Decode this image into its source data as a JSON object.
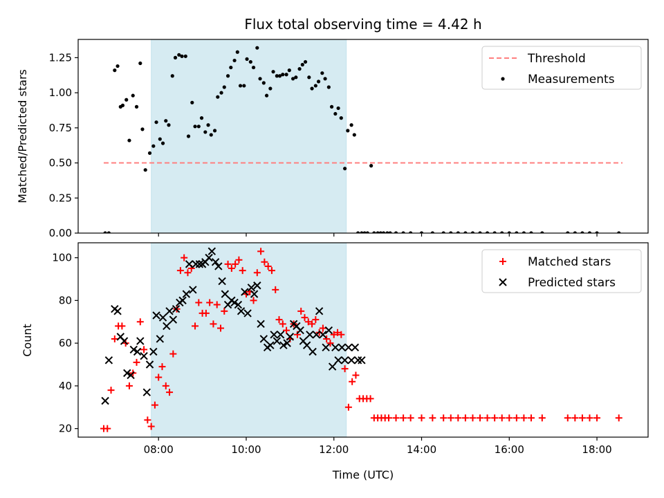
{
  "chart_data": [
    {
      "type": "scatter",
      "title": "Flux total observing time = 4.42 h",
      "xlabel": "",
      "ylabel": "Matched/Predicted stars",
      "xlim": [
        "06:10",
        "19:10"
      ],
      "ylim": [
        0,
        1.38
      ],
      "yticks": [
        0.0,
        0.25,
        0.5,
        0.75,
        1.0,
        1.25
      ],
      "ytick_labels": [
        "0.00",
        "0.25",
        "0.50",
        "0.75",
        "1.00",
        "1.25"
      ],
      "shaded_span": {
        "x": [
          "07:50",
          "12:17"
        ],
        "color": "#add8e6"
      },
      "threshold": {
        "name": "Threshold",
        "y": 0.5,
        "x": [
          "06:45",
          "18:35"
        ],
        "color": "#ff7f7f"
      },
      "legend": {
        "position": "top-right",
        "entries": [
          "Threshold",
          "Measurements"
        ]
      },
      "series": [
        {
          "name": "Measurements",
          "color": "#000000",
          "x": [
            "06:47",
            "06:52",
            "07:00",
            "07:04",
            "07:08",
            "07:11",
            "07:16",
            "07:20",
            "07:25",
            "07:30",
            "07:35",
            "07:38",
            "07:42",
            "07:48",
            "07:53",
            "07:57",
            "08:02",
            "08:06",
            "08:10",
            "08:14",
            "08:19",
            "08:23",
            "08:28",
            "08:32",
            "08:37",
            "08:41",
            "08:46",
            "08:50",
            "08:55",
            "08:59",
            "09:04",
            "09:08",
            "09:12",
            "09:17",
            "09:21",
            "09:26",
            "09:30",
            "09:35",
            "09:39",
            "09:44",
            "09:48",
            "09:52",
            "09:57",
            "10:01",
            "10:06",
            "10:10",
            "10:15",
            "10:19",
            "10:24",
            "10:28",
            "10:33",
            "10:37",
            "10:42",
            "10:46",
            "10:50",
            "10:55",
            "10:59",
            "11:04",
            "11:08",
            "11:13",
            "11:17",
            "11:21",
            "11:26",
            "11:30",
            "11:35",
            "11:39",
            "11:44",
            "11:48",
            "11:53",
            "11:57",
            "12:02",
            "12:06",
            "12:10",
            "12:15",
            "12:19",
            "12:24",
            "12:28",
            "12:33",
            "12:38",
            "12:42",
            "12:46",
            "12:51",
            "12:55",
            "13:00",
            "13:04",
            "13:08",
            "13:13",
            "13:17",
            "13:25",
            "13:35",
            "13:45",
            "14:00",
            "14:15",
            "14:30",
            "14:40",
            "14:50",
            "15:00",
            "15:10",
            "15:20",
            "15:30",
            "15:40",
            "15:50",
            "16:00",
            "16:10",
            "16:20",
            "16:30",
            "16:45",
            "17:20",
            "17:30",
            "17:40",
            "17:50",
            "18:00",
            "18:30"
          ],
          "y": [
            0.0,
            0.0,
            1.16,
            1.19,
            0.9,
            0.91,
            0.95,
            0.66,
            0.98,
            0.9,
            1.21,
            0.74,
            0.45,
            0.57,
            0.62,
            0.79,
            0.67,
            0.64,
            0.8,
            0.77,
            1.12,
            1.25,
            1.27,
            1.26,
            1.26,
            0.69,
            0.93,
            0.76,
            0.76,
            0.82,
            0.72,
            0.77,
            0.7,
            0.73,
            0.97,
            1.0,
            1.04,
            1.12,
            1.18,
            1.23,
            1.29,
            1.05,
            1.05,
            1.24,
            1.22,
            1.18,
            1.32,
            1.1,
            1.07,
            0.98,
            1.03,
            1.15,
            1.12,
            1.12,
            1.13,
            1.13,
            1.16,
            1.1,
            1.11,
            1.17,
            1.2,
            1.22,
            1.11,
            1.03,
            1.05,
            1.08,
            1.14,
            1.1,
            1.04,
            0.9,
            0.85,
            0.89,
            0.82,
            0.46,
            0.73,
            0.77,
            0.7,
            0.0,
            0.0,
            0.0,
            0.0,
            0.48,
            0.0,
            0.0,
            0.0,
            0.0,
            0.0,
            0.0,
            0.0,
            0.0,
            0.0,
            0.0,
            0.0,
            0.0,
            0.0,
            0.0,
            0.0,
            0.0,
            0.0,
            0.0,
            0.0,
            0.0,
            0.0,
            0.0,
            0.0,
            0.0,
            0.0,
            0.0,
            0.0,
            0.0,
            0.0,
            0.0,
            0.0
          ]
        }
      ]
    },
    {
      "type": "scatter",
      "title": "",
      "xlabel": "Time (UTC)",
      "ylabel": "Count",
      "xlim": [
        "06:10",
        "19:10"
      ],
      "xticks": [
        "08:00",
        "10:00",
        "12:00",
        "14:00",
        "16:00",
        "18:00"
      ],
      "ylim": [
        16,
        107
      ],
      "yticks": [
        20,
        40,
        60,
        80,
        100
      ],
      "shaded_span": {
        "x": [
          "07:50",
          "12:17"
        ],
        "color": "#add8e6"
      },
      "legend": {
        "position": "top-right",
        "entries": [
          "Matched stars",
          "Predicted stars"
        ]
      },
      "series": [
        {
          "name": "Matched stars",
          "marker": "plus",
          "color": "#ff0000",
          "x": [
            "06:45",
            "06:50",
            "06:55",
            "07:00",
            "07:05",
            "07:10",
            "07:15",
            "07:20",
            "07:25",
            "07:30",
            "07:35",
            "07:40",
            "07:45",
            "07:50",
            "07:55",
            "08:00",
            "08:05",
            "08:10",
            "08:15",
            "08:20",
            "08:25",
            "08:30",
            "08:35",
            "08:40",
            "08:45",
            "08:50",
            "08:55",
            "09:00",
            "09:05",
            "09:10",
            "09:15",
            "09:20",
            "09:25",
            "09:30",
            "09:35",
            "09:40",
            "09:45",
            "09:50",
            "09:55",
            "10:00",
            "10:05",
            "10:10",
            "10:15",
            "10:20",
            "10:25",
            "10:30",
            "10:35",
            "10:40",
            "10:45",
            "10:50",
            "10:55",
            "11:00",
            "11:05",
            "11:10",
            "11:15",
            "11:20",
            "11:25",
            "11:30",
            "11:35",
            "11:40",
            "11:45",
            "11:50",
            "11:55",
            "12:00",
            "12:05",
            "12:10",
            "12:15",
            "12:20",
            "12:25",
            "12:30",
            "12:35",
            "12:40",
            "12:45",
            "12:50",
            "12:55",
            "13:00",
            "13:05",
            "13:10",
            "13:15",
            "13:25",
            "13:35",
            "13:45",
            "14:00",
            "14:15",
            "14:30",
            "14:40",
            "14:50",
            "15:00",
            "15:10",
            "15:20",
            "15:30",
            "15:40",
            "15:50",
            "16:00",
            "16:10",
            "16:20",
            "16:30",
            "16:45",
            "17:20",
            "17:30",
            "17:40",
            "17:50",
            "18:00",
            "18:30"
          ],
          "y": [
            20,
            20,
            38,
            62,
            68,
            68,
            60,
            40,
            46,
            51,
            70,
            57,
            24,
            21,
            31,
            44,
            49,
            40,
            37,
            55,
            76,
            94,
            100,
            93,
            95,
            68,
            79,
            74,
            74,
            79,
            69,
            78,
            67,
            75,
            97,
            95,
            97,
            99,
            94,
            83,
            84,
            80,
            93,
            103,
            98,
            96,
            94,
            85,
            71,
            69,
            66,
            62,
            69,
            64,
            75,
            72,
            70,
            69,
            71,
            65,
            67,
            62,
            60,
            64,
            65,
            64,
            48,
            30,
            42,
            45,
            34,
            34,
            34,
            34,
            25,
            25,
            25,
            25,
            25,
            25,
            25,
            25,
            25,
            25,
            25,
            25,
            25,
            25,
            25,
            25,
            25,
            25,
            25,
            25,
            25,
            25,
            25,
            25,
            25,
            25,
            25,
            25,
            25,
            25
          ]
        },
        {
          "name": "Predicted stars",
          "marker": "x",
          "color": "#000000",
          "x": [
            "06:47",
            "06:52",
            "07:00",
            "07:04",
            "07:08",
            "07:13",
            "07:17",
            "07:22",
            "07:26",
            "07:31",
            "07:35",
            "07:40",
            "07:44",
            "07:48",
            "07:53",
            "07:57",
            "08:02",
            "08:06",
            "08:11",
            "08:15",
            "08:20",
            "08:24",
            "08:29",
            "08:33",
            "08:38",
            "08:42",
            "08:47",
            "08:51",
            "08:56",
            "09:00",
            "09:04",
            "09:09",
            "09:13",
            "09:18",
            "09:22",
            "09:27",
            "09:31",
            "09:35",
            "09:40",
            "09:44",
            "09:49",
            "09:53",
            "09:58",
            "10:02",
            "10:07",
            "10:11",
            "10:15",
            "10:20",
            "10:24",
            "10:29",
            "10:33",
            "10:38",
            "10:42",
            "10:47",
            "10:51",
            "10:56",
            "11:00",
            "11:05",
            "11:09",
            "11:14",
            "11:18",
            "11:23",
            "11:27",
            "11:31",
            "11:36",
            "11:40",
            "11:45",
            "11:49",
            "11:53",
            "11:58",
            "12:02",
            "12:06",
            "12:11",
            "12:15",
            "12:20",
            "12:24",
            "12:29",
            "12:33",
            "12:38"
          ],
          "y": [
            33,
            52,
            76,
            75,
            63,
            61,
            46,
            45,
            57,
            56,
            61,
            54,
            37,
            50,
            56,
            73,
            62,
            72,
            68,
            75,
            71,
            76,
            79,
            80,
            83,
            97,
            85,
            97,
            97,
            97,
            98,
            100,
            103,
            98,
            96,
            89,
            83,
            78,
            80,
            79,
            78,
            75,
            84,
            74,
            86,
            83,
            87,
            69,
            62,
            58,
            59,
            64,
            61,
            64,
            59,
            60,
            63,
            69,
            68,
            66,
            61,
            59,
            64,
            56,
            64,
            75,
            64,
            58,
            66,
            49,
            58,
            52,
            58,
            52,
            58,
            52,
            58,
            52,
            52
          ]
        }
      ]
    }
  ]
}
